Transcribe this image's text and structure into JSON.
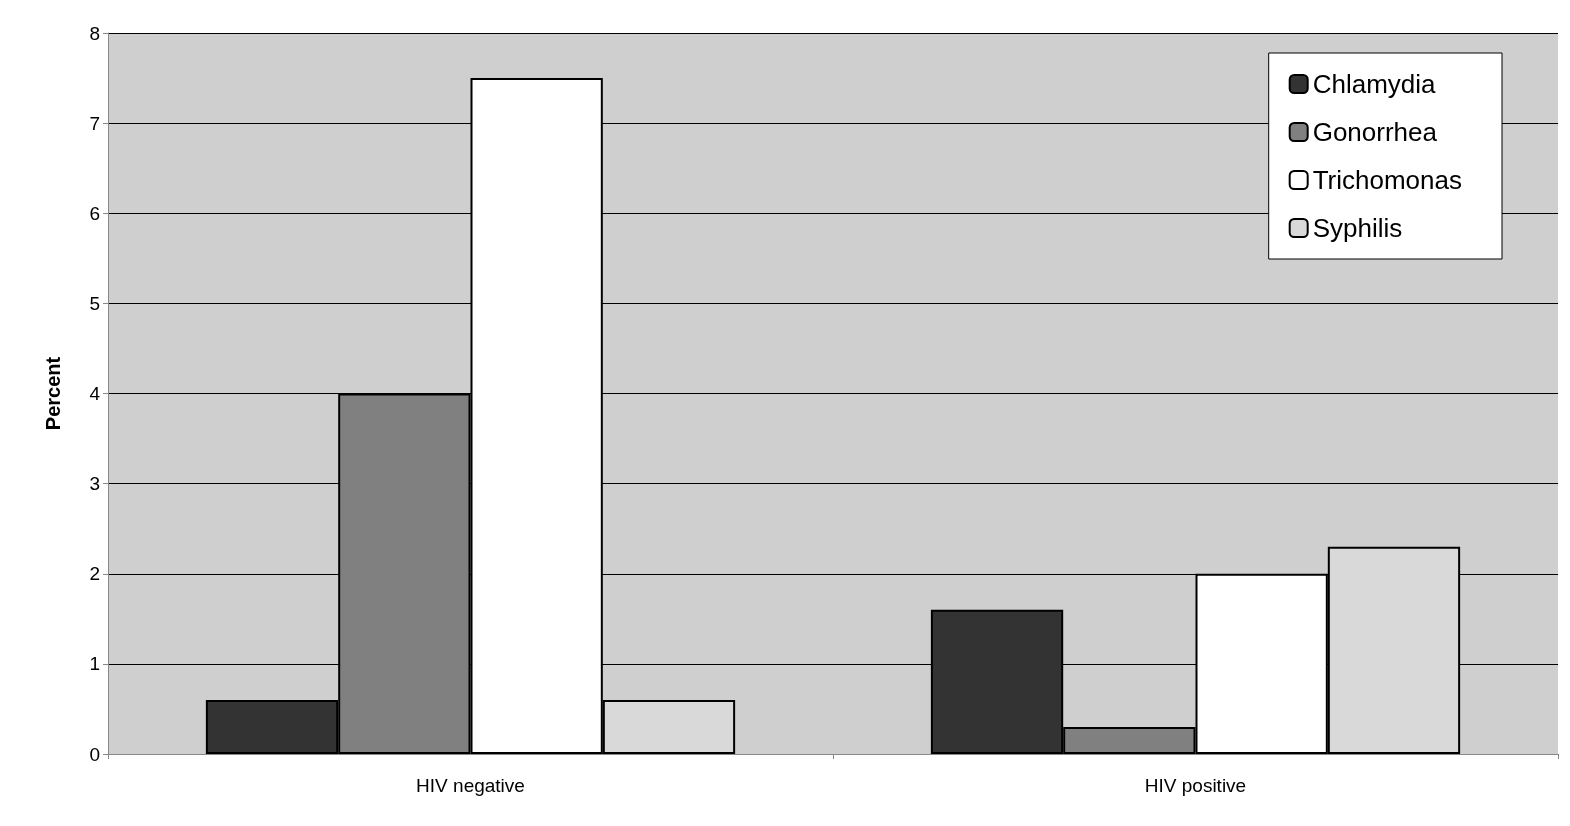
{
  "chart_data": {
    "type": "bar",
    "ylabel": "Percent",
    "categories": [
      "HIV negative",
      "HIV positive"
    ],
    "series": [
      {
        "name": "Chlamydia",
        "color": "#333333",
        "values": [
          0.6,
          1.6
        ]
      },
      {
        "name": "Gonorrhea",
        "color": "#808080",
        "values": [
          4.0,
          0.3
        ]
      },
      {
        "name": "Trichomonas",
        "color": "#ffffff",
        "values": [
          7.5,
          2.0
        ]
      },
      {
        "name": "Syphilis",
        "color": "#d9d9d9",
        "values": [
          0.6,
          2.3
        ]
      }
    ],
    "ylim": [
      0,
      8
    ],
    "yticks": [
      0,
      1,
      2,
      3,
      4,
      5,
      6,
      7,
      8
    ],
    "grid": "y",
    "legend": "top right"
  }
}
